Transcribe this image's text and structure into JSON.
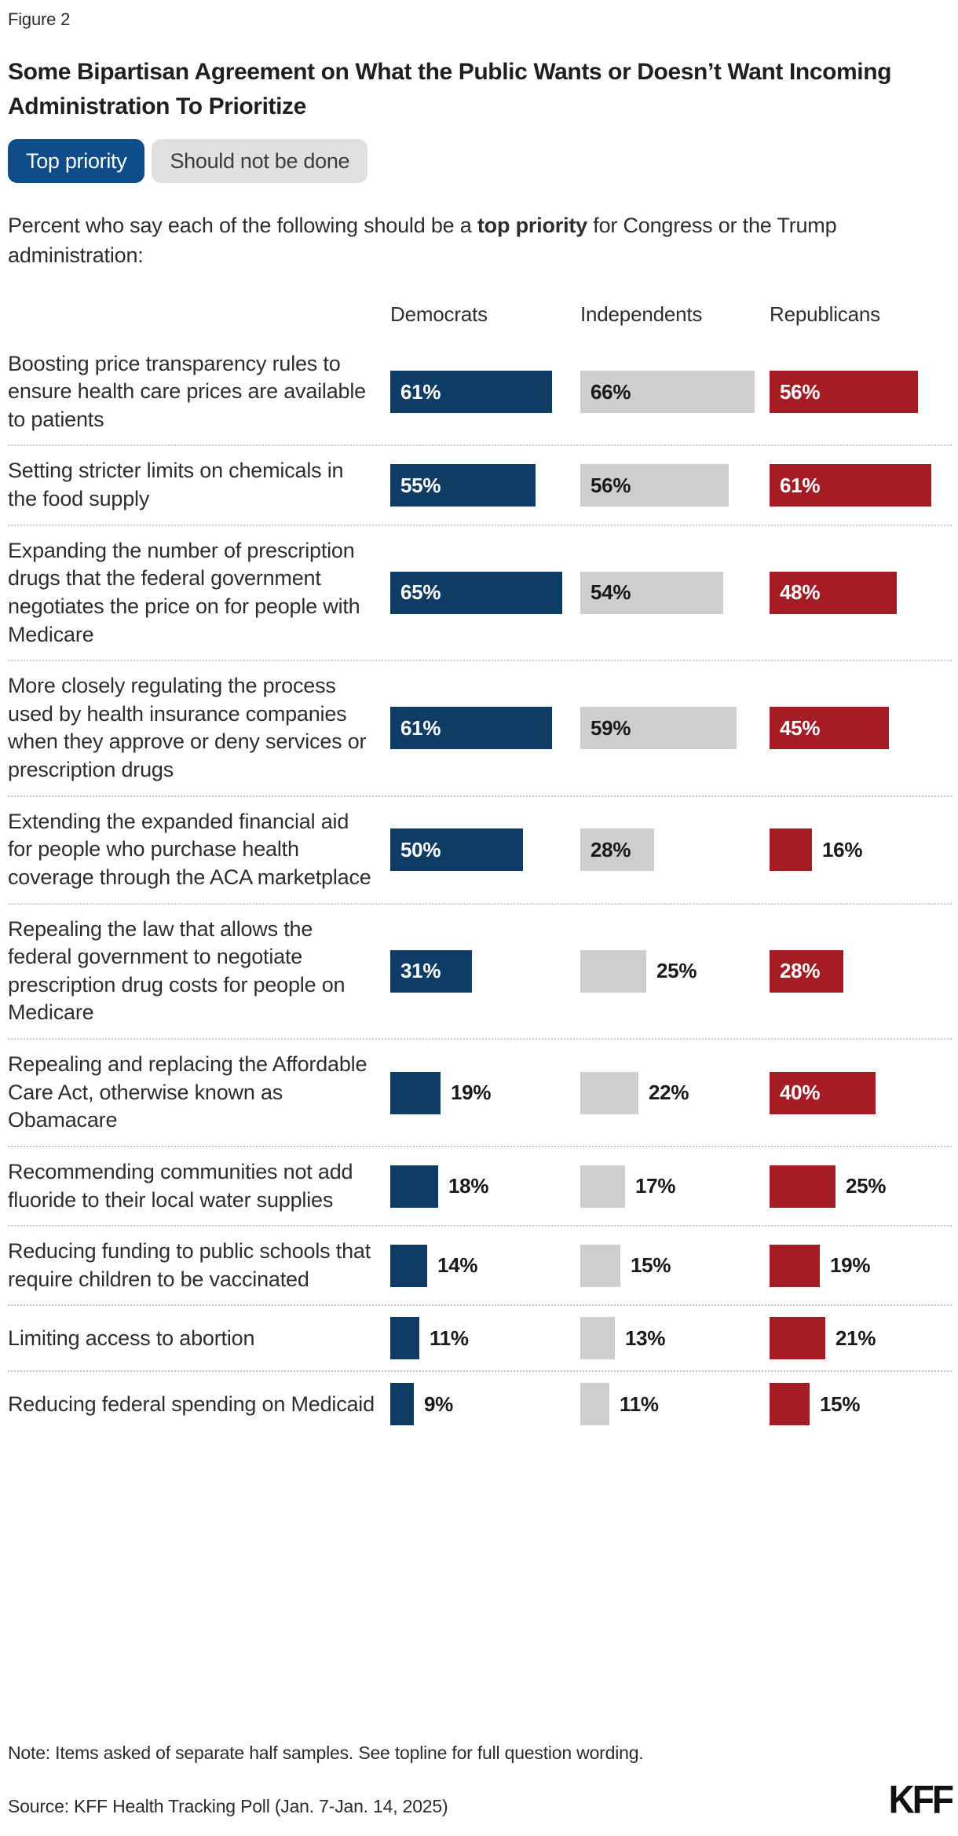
{
  "figure_label": "Figure 2",
  "title": "Some Bipartisan Agreement on What the Public Wants or Doesn’t Want Incoming Administration To Prioritize",
  "toggles": [
    {
      "label": "Top priority",
      "active": true
    },
    {
      "label": "Should not be done",
      "active": false
    }
  ],
  "subtitle": {
    "prefix": "Percent who say each of the following should be a ",
    "bold": "top priority",
    "suffix": " for Congress or the Trump administration:"
  },
  "colors": {
    "democrat_bar": "#0e3c64",
    "independent_bar": "#cecece",
    "republican_bar": "#a41d24",
    "active_pill": "#0e4d8a",
    "inactive_pill": "#e0e0e0"
  },
  "chart_data": {
    "type": "bar",
    "orientation": "horizontal",
    "value_suffix": "%",
    "xlim": [
      0,
      72
    ],
    "legend_position": "column-headers",
    "grid": false,
    "categories": [
      "Boosting price transparency rules to ensure health care prices are available to patients",
      "Setting stricter limits on chemicals in the food supply",
      "Expanding the number of prescription drugs that the federal government negotiates the price on for people with Medicare",
      "More closely regulating the process used by health insurance companies when they approve or deny services or prescription drugs",
      "Extending the expanded financial aid for people who purchase health coverage through the ACA marketplace",
      "Repealing the law that allows the federal government to negotiate prescription drug costs for people on Medicare",
      "Repealing and replacing the Affordable Care Act, otherwise known as Obamacare",
      "Recommending communities not add fluoride to their local water supplies",
      "Reducing funding to public schools that require children to be vaccinated",
      "Limiting access to abortion",
      "Reducing federal spending on Medicaid"
    ],
    "series": [
      {
        "name": "Democrats",
        "color": "#0e3c64",
        "text_color": "#ffffff",
        "values": [
          61,
          55,
          65,
          61,
          50,
          31,
          19,
          18,
          14,
          11,
          9
        ]
      },
      {
        "name": "Independents",
        "color": "#cecece",
        "text_color": "#1a1a1a",
        "values": [
          66,
          56,
          54,
          59,
          28,
          25,
          22,
          17,
          15,
          13,
          11
        ]
      },
      {
        "name": "Republicans",
        "color": "#a41d24",
        "text_color": "#ffffff",
        "values": [
          56,
          61,
          48,
          45,
          16,
          28,
          40,
          25,
          19,
          21,
          15
        ]
      }
    ]
  },
  "note": "Note: Items asked of separate half samples. See topline for full question wording.",
  "source": "Source: KFF Health Tracking Poll (Jan. 7-Jan. 14, 2025)",
  "logo": "KFF"
}
